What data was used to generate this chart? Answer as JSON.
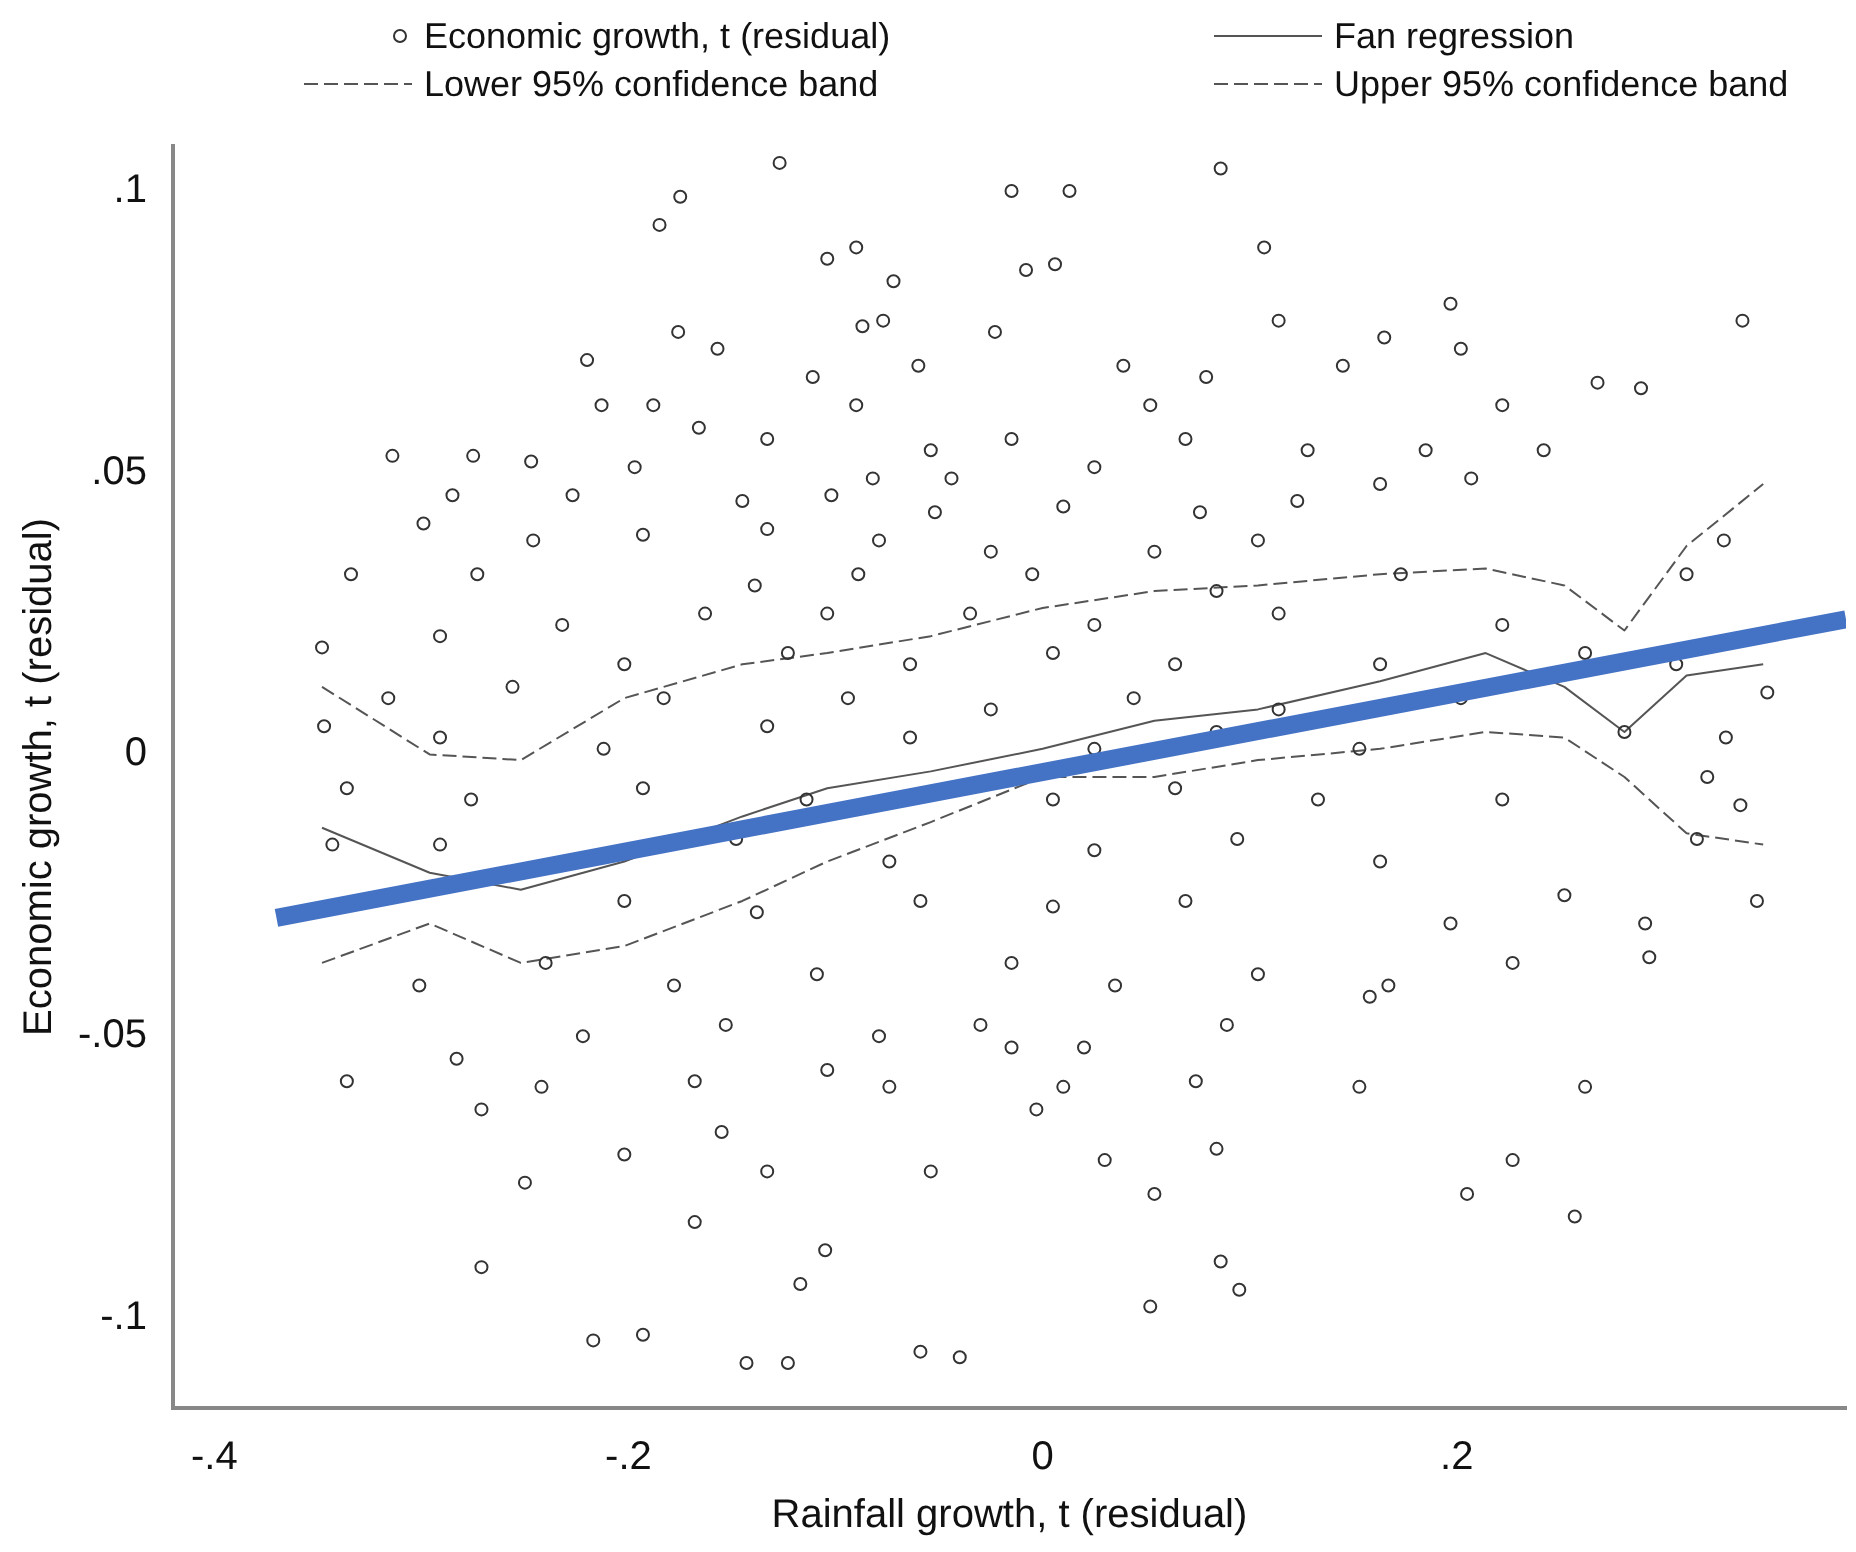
{
  "chart_data": {
    "type": "scatter",
    "xlabel": "Rainfall growth, t (residual)",
    "ylabel": "Economic growth, t (residual)",
    "xlim": [
      -0.42,
      0.388
    ],
    "ylim": [
      -0.116,
      0.108
    ],
    "xticks": [
      {
        "value": -0.4,
        "label": "-.4"
      },
      {
        "value": -0.2,
        "label": "-.2"
      },
      0,
      {
        "value": 0.2,
        "label": ".2"
      }
    ],
    "yticks": [
      {
        "value": -0.1,
        "label": "-.1"
      },
      {
        "value": -0.05,
        "label": "-.05"
      },
      0,
      {
        "value": 0.05,
        "label": ".05"
      },
      {
        "value": 0.1,
        "label": ".1"
      }
    ],
    "grid": false,
    "legend": "top",
    "marker": "circle",
    "series": [
      {
        "name": "Economic growth, t (residual)",
        "color": "#333333",
        "x": [
          -0.127,
          0.086,
          -0.015,
          0.013,
          -0.175,
          -0.185,
          0.107,
          -0.09,
          -0.104,
          -0.072,
          -0.008,
          0.006,
          0.197,
          -0.176,
          -0.087,
          -0.077,
          -0.023,
          0.114,
          0.202,
          0.165,
          -0.157,
          -0.22,
          -0.111,
          -0.06,
          0.039,
          0.079,
          0.145,
          -0.188,
          -0.213,
          -0.09,
          0.052,
          0.222,
          0.268,
          0.289,
          0.338,
          -0.166,
          -0.133,
          -0.054,
          -0.015,
          0.069,
          -0.314,
          -0.275,
          -0.247,
          -0.197,
          -0.082,
          -0.044,
          0.025,
          0.128,
          0.185,
          0.242,
          -0.285,
          -0.227,
          -0.145,
          -0.102,
          -0.052,
          0.01,
          0.076,
          0.123,
          0.163,
          0.207,
          0.329,
          -0.299,
          -0.246,
          -0.193,
          -0.133,
          -0.079,
          -0.025,
          0.054,
          0.104,
          0.173,
          0.311,
          -0.334,
          -0.273,
          -0.139,
          -0.089,
          -0.005,
          0.084,
          -0.232,
          -0.163,
          -0.104,
          -0.035,
          0.025,
          0.114,
          0.222,
          -0.348,
          -0.291,
          -0.202,
          -0.123,
          -0.064,
          0.005,
          0.064,
          0.163,
          0.262,
          0.306,
          -0.316,
          -0.256,
          -0.183,
          -0.094,
          -0.025,
          0.044,
          0.114,
          0.202,
          0.35,
          -0.347,
          -0.291,
          -0.212,
          -0.133,
          -0.064,
          0.025,
          0.084,
          0.153,
          0.281,
          0.33,
          -0.336,
          -0.276,
          -0.193,
          -0.114,
          0.005,
          0.064,
          0.133,
          0.222,
          0.321,
          -0.343,
          -0.291,
          -0.148,
          -0.074,
          0.025,
          0.094,
          0.163,
          0.316,
          0.337,
          -0.202,
          -0.138,
          -0.059,
          0.005,
          0.069,
          0.197,
          0.252,
          0.291,
          0.345,
          -0.301,
          -0.24,
          -0.178,
          -0.109,
          -0.015,
          0.035,
          0.104,
          0.167,
          0.227,
          0.293,
          -0.283,
          -0.222,
          -0.153,
          -0.079,
          -0.03,
          0.02,
          0.089,
          0.158,
          -0.336,
          -0.242,
          -0.168,
          -0.104,
          0.01,
          0.074,
          0.153,
          0.262,
          -0.271,
          -0.155,
          -0.074,
          -0.003,
          0.084,
          0.227,
          -0.202,
          -0.133,
          -0.054,
          0.03,
          0.054,
          0.205,
          -0.25,
          -0.168,
          -0.105,
          0.257,
          0.086,
          -0.271,
          -0.117,
          0.052,
          0.095,
          -0.217,
          -0.193,
          -0.143,
          -0.123,
          -0.059,
          -0.04,
          -0.015
        ],
        "values": [
          0.105,
          0.104,
          0.1,
          0.1,
          0.099,
          0.094,
          0.09,
          0.09,
          0.088,
          0.084,
          0.086,
          0.087,
          0.08,
          0.075,
          0.076,
          0.077,
          0.075,
          0.077,
          0.072,
          0.074,
          0.072,
          0.07,
          0.067,
          0.069,
          0.069,
          0.067,
          0.069,
          0.062,
          0.062,
          0.062,
          0.062,
          0.062,
          0.066,
          0.065,
          0.077,
          0.058,
          0.056,
          0.054,
          0.056,
          0.056,
          0.053,
          0.053,
          0.052,
          0.051,
          0.049,
          0.049,
          0.051,
          0.054,
          0.054,
          0.054,
          0.046,
          0.046,
          0.045,
          0.046,
          0.043,
          0.044,
          0.043,
          0.045,
          0.048,
          0.049,
          0.038,
          0.041,
          0.038,
          0.039,
          0.04,
          0.038,
          0.036,
          0.036,
          0.038,
          0.032,
          0.032,
          0.032,
          0.032,
          0.03,
          0.032,
          0.032,
          0.029,
          0.023,
          0.025,
          0.025,
          0.025,
          0.023,
          0.025,
          0.023,
          0.019,
          0.021,
          0.016,
          0.018,
          0.016,
          0.018,
          0.016,
          0.016,
          0.018,
          0.016,
          0.01,
          0.012,
          0.01,
          0.01,
          0.008,
          0.01,
          0.008,
          0.01,
          0.011,
          0.005,
          0.003,
          0.001,
          0.005,
          0.003,
          0.001,
          0.004,
          0.001,
          0.004,
          0.003,
          -0.006,
          -0.008,
          -0.006,
          -0.008,
          -0.008,
          -0.006,
          -0.008,
          -0.008,
          -0.004,
          -0.016,
          -0.016,
          -0.015,
          -0.019,
          -0.017,
          -0.015,
          -0.019,
          -0.015,
          -0.009,
          -0.026,
          -0.028,
          -0.026,
          -0.027,
          -0.026,
          -0.03,
          -0.025,
          -0.03,
          -0.026,
          -0.041,
          -0.037,
          -0.041,
          -0.039,
          -0.037,
          -0.041,
          -0.039,
          -0.041,
          -0.037,
          -0.036,
          -0.054,
          -0.05,
          -0.048,
          -0.05,
          -0.048,
          -0.052,
          -0.048,
          -0.043,
          -0.058,
          -0.059,
          -0.058,
          -0.056,
          -0.059,
          -0.058,
          -0.059,
          -0.059,
          -0.063,
          -0.067,
          -0.059,
          -0.063,
          -0.07,
          -0.072,
          -0.071,
          -0.074,
          -0.074,
          -0.072,
          -0.078,
          -0.078,
          -0.076,
          -0.083,
          -0.088,
          -0.082,
          -0.09,
          -0.091,
          -0.094,
          -0.098,
          -0.095,
          -0.104,
          -0.103,
          -0.108,
          -0.108,
          -0.106,
          -0.107,
          -0.052
        ]
      },
      {
        "name": "Fan regression",
        "type": "line",
        "color": "#555555",
        "marker": "none",
        "line_style": "solid",
        "x": [
          -0.348,
          -0.296,
          -0.252,
          -0.202,
          -0.145,
          -0.104,
          -0.054,
          0,
          0.054,
          0.104,
          0.163,
          0.214,
          0.252,
          0.281,
          0.311,
          0.348
        ],
        "values": [
          -0.013,
          -0.021,
          -0.024,
          -0.019,
          -0.011,
          -0.006,
          -0.003,
          0.001,
          0.006,
          0.008,
          0.013,
          0.018,
          0.012,
          0.004,
          0.014,
          0.016
        ]
      },
      {
        "name": "Lower 95% confidence band",
        "type": "line",
        "color": "#555555",
        "marker": "none",
        "line_style": "dashed",
        "x": [
          -0.348,
          -0.296,
          -0.252,
          -0.202,
          -0.145,
          -0.104,
          -0.054,
          0,
          0.054,
          0.104,
          0.163,
          0.214,
          0.252,
          0.281,
          0.311,
          0.348
        ],
        "values": [
          -0.037,
          -0.03,
          -0.037,
          -0.034,
          -0.026,
          -0.019,
          -0.012,
          -0.004,
          -0.004,
          -0.001,
          0.001,
          0.004,
          0.003,
          -0.004,
          -0.014,
          -0.016
        ]
      },
      {
        "name": "Upper 95% confidence band",
        "type": "line",
        "color": "#555555",
        "marker": "none",
        "line_style": "dashed",
        "x": [
          -0.348,
          -0.296,
          -0.252,
          -0.202,
          -0.145,
          -0.104,
          -0.054,
          0,
          0.054,
          0.104,
          0.163,
          0.214,
          0.252,
          0.281,
          0.311,
          0.348
        ],
        "values": [
          0.012,
          0,
          -0.001,
          0.01,
          0.016,
          0.018,
          0.021,
          0.026,
          0.029,
          0.03,
          0.032,
          0.033,
          0.03,
          0.022,
          0.037,
          0.048
        ]
      },
      {
        "type": "line",
        "color": "#4472c4",
        "marker": "none",
        "line_style": "solid",
        "x": [
          -0.37,
          0.388
        ],
        "values": [
          -0.029,
          0.024
        ]
      }
    ]
  }
}
